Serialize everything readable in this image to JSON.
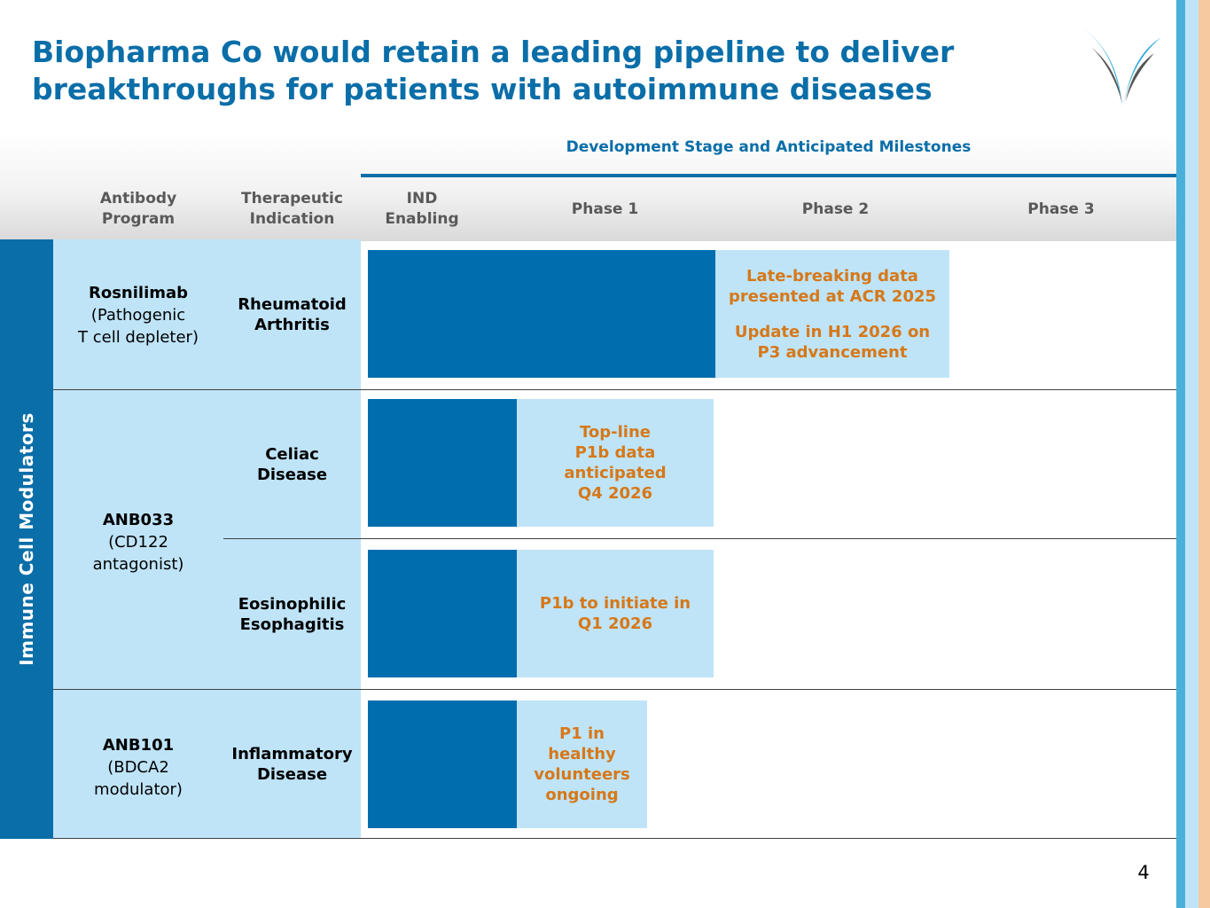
{
  "slide": {
    "title_line1": "Biopharma Co would retain a leading pipeline to deliver",
    "title_line2": "breakthroughs for patients with autoimmune diseases",
    "page_number": "4"
  },
  "header": {
    "dev_stage": "Development Stage and Anticipated Milestones",
    "program_l1": "Antibody",
    "program_l2": "Program",
    "indication_l1": "Therapeutic",
    "indication_l2": "Indication",
    "ind_l1": "IND",
    "ind_l2": "Enabling",
    "phase1": "Phase 1",
    "phase2": "Phase 2",
    "phase3": "Phase 3"
  },
  "sidebar": {
    "label": "Immune Cell Modulators"
  },
  "rows": {
    "rosnilimab": {
      "name": "Rosnilimab",
      "desc_l1": "(Pathogenic",
      "desc_l2": "T cell depleter)",
      "ind_l1": "Rheumatoid",
      "ind_l2": "Arthritis",
      "note1_l1": "Late-breaking data",
      "note1_l2": "presented at ACR 2025",
      "note2_l1": "Update in H1 2026 on",
      "note2_l2": "P3 advancement"
    },
    "anb033": {
      "name": "ANB033",
      "desc_l1": "(CD122",
      "desc_l2": "antagonist)",
      "celiac_l1": "Celiac",
      "celiac_l2": "Disease",
      "celiac_note_l1": "Top-line",
      "celiac_note_l2": "P1b data",
      "celiac_note_l3": "anticipated",
      "celiac_note_l4": "Q4 2026",
      "eoe_l1": "Eosinophilic",
      "eoe_l2": "Esophagitis",
      "eoe_note_l1": "P1b to initiate in",
      "eoe_note_l2": "Q1 2026"
    },
    "anb101": {
      "name": "ANB101",
      "desc_l1": "(BDCA2",
      "desc_l2": "modulator)",
      "ind_l1": "Inflammatory",
      "ind_l2": "Disease",
      "note_l1": "P1 in",
      "note_l2": "healthy",
      "note_l3": "volunteers",
      "note_l4": "ongoing"
    }
  },
  "colors": {
    "brand_blue": "#0a6ea8",
    "bar_dark": "#006daf",
    "bar_light": "#bfe4f8",
    "note_orange": "#d67819"
  }
}
